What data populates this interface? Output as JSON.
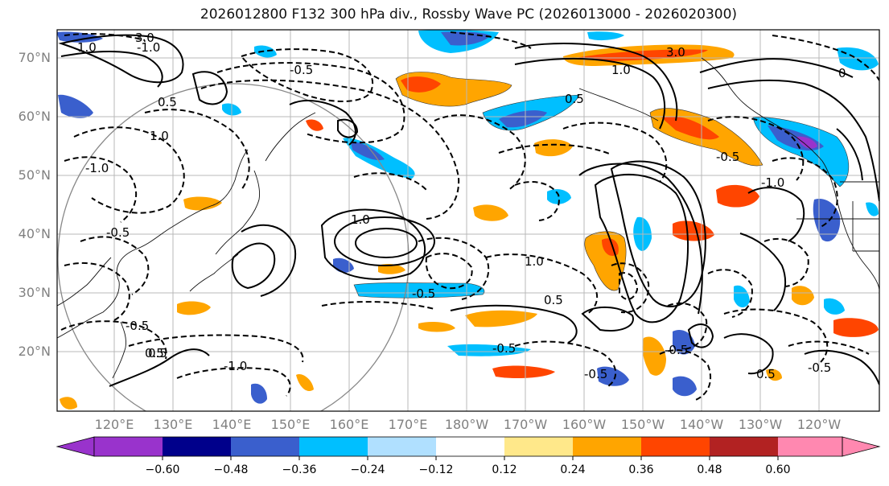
{
  "title": "2026012800 F132 300 hPa div., Rossby Wave PC (2026013000 - 2026020300)",
  "map": {
    "lat_labels": [
      "70°N",
      "60°N",
      "50°N",
      "40°N",
      "30°N",
      "20°N"
    ],
    "lon_labels": [
      "120°E",
      "130°E",
      "140°E",
      "150°E",
      "160°E",
      "170°E",
      "180°W",
      "170°W",
      "160°W",
      "150°W",
      "140°W",
      "130°W",
      "120°W"
    ],
    "contour_labels": [
      "3.0",
      "1.0",
      "-1.0",
      "-0.5",
      "0.5",
      "1.0",
      "-1.0",
      "-0.5",
      "0.5",
      "1.0",
      "0.5",
      "-0.5",
      "-0.5",
      "3.0",
      "1.0",
      "-1.0",
      "0.5",
      "1.0",
      "-0.5",
      "-0.5",
      "-0.5",
      "-0.5",
      "-1.0",
      "0.5",
      "0.5",
      "0",
      "-0.5"
    ]
  },
  "colorbar": {
    "colors": [
      "#9933cc",
      "#00008b",
      "#3a5fcd",
      "#00bfff",
      "#b0e0ff",
      "#ffffff",
      "#ffe88a",
      "#ffa500",
      "#ff4500",
      "#b22222",
      "#ff88b0"
    ],
    "tick_labels": [
      "−0.60",
      "−0.48",
      "−0.36",
      "−0.24",
      "−0.12",
      "0.12",
      "0.24",
      "0.36",
      "0.48",
      "0.60"
    ]
  }
}
